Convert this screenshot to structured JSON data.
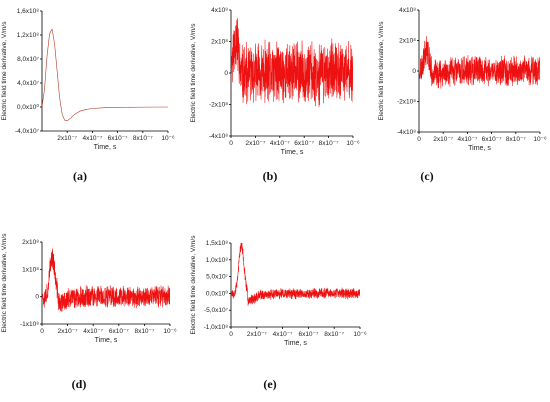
{
  "chart_data": [
    {
      "panel": "(a)",
      "type": "line",
      "xlabel": "Time, s",
      "ylabel": "Electric field time derivative, V/m/s",
      "xlim": [
        0,
        1e-06
      ],
      "ylim": [
        -40000000.0,
        160000000.0
      ],
      "xticks": [
        "2x10⁻⁷",
        "4x10⁻⁷",
        "6x10⁻⁷",
        "8x10⁻⁷",
        "10⁻⁶"
      ],
      "yticks": [
        "-4,0x10⁷",
        "0,0x10⁰",
        "4,0x10⁷",
        "8,0x10⁷",
        "1,2x10⁸",
        "1,6x10⁸"
      ],
      "series": [
        {
          "color": "#b23a1e",
          "x": [
            0,
            2e-08,
            4e-08,
            6e-08,
            8e-08,
            1e-07,
            1.2e-07,
            1.4e-07,
            1.6e-07,
            1.8e-07,
            2e-07,
            2.3e-07,
            2.6e-07,
            3e-07,
            3.5e-07,
            4e-07,
            5e-07,
            6e-07,
            8e-07,
            1e-06
          ],
          "values": [
            0,
            30000000.0,
            85000000.0,
            122000000.0,
            130000000.0,
            105000000.0,
            60000000.0,
            15000000.0,
            -12000000.0,
            -22000000.0,
            -23000000.0,
            -18000000.0,
            -12000000.0,
            -7000000.0,
            -4000000.0,
            -2500000.0,
            -1200000.0,
            -600000.0,
            -200000.0,
            0
          ]
        }
      ]
    },
    {
      "panel": "(b)",
      "type": "line",
      "xlabel": "Time, s",
      "ylabel": "Electric field time derivative, V/m/s",
      "xlim": [
        0,
        1e-06
      ],
      "ylim": [
        -400000000.0,
        400000000.0
      ],
      "xticks": [
        "0",
        "2x10⁻⁷",
        "4x10⁻⁷",
        "6x10⁻⁷",
        "8x10⁻⁷",
        "10⁻⁶"
      ],
      "yticks": [
        "-4x10⁸",
        "-2x10⁸",
        "0",
        "2x10⁸",
        "4x10⁸"
      ],
      "series": [
        {
          "color": "#ee1111",
          "signal": {
            "pulse_peak": 220000000.0,
            "pulse_time": 4e-08,
            "pulse_width": 3e-08,
            "noise_amplitude": 220000000.0,
            "seed": 11
          }
        }
      ]
    },
    {
      "panel": "(c)",
      "type": "line",
      "xlabel": "Time, s",
      "ylabel": "Electric field time derivative, V/m/s",
      "xlim": [
        0,
        1e-06
      ],
      "ylim": [
        -400000000.0,
        400000000.0
      ],
      "xticks": [
        "0",
        "2x10⁻⁷",
        "4x10⁻⁷",
        "6x10⁻⁷",
        "8x10⁻⁷",
        "10⁻⁶"
      ],
      "yticks": [
        "-4x10⁸",
        "-2x10⁸",
        "0",
        "2x10⁸",
        "4x10⁸"
      ],
      "series": [
        {
          "color": "#ee1111",
          "signal": {
            "pulse_peak": 150000000.0,
            "pulse_time": 6e-08,
            "pulse_width": 3e-08,
            "noise_amplitude": 110000000.0,
            "seed": 23
          }
        }
      ]
    },
    {
      "panel": "(d)",
      "type": "line",
      "xlabel": "Time, s",
      "ylabel": "Electric field time derivative, V/m/s",
      "xlim": [
        0,
        1e-06
      ],
      "ylim": [
        -100000000.0,
        200000000.0
      ],
      "xticks": [
        "0",
        "2x10⁻⁷",
        "4x10⁻⁷",
        "6x10⁻⁷",
        "8x10⁻⁷",
        "10⁻⁶"
      ],
      "yticks": [
        "-1x10⁸",
        "0",
        "1x10⁸",
        "2x10⁸"
      ],
      "series": [
        {
          "color": "#ee1111",
          "signal": {
            "pulse_peak": 145000000.0,
            "pulse_time": 8e-08,
            "pulse_width": 2.8e-08,
            "noise_amplitude": 45000000.0,
            "seed": 37
          }
        }
      ]
    },
    {
      "panel": "(e)",
      "type": "line",
      "xlabel": "Time, s",
      "ylabel": "Electric field time derivative, V/m/s",
      "xlim": [
        0,
        1e-06
      ],
      "ylim": [
        -100000000.0,
        150000000.0
      ],
      "xticks": [
        "0",
        "2x10⁻⁷",
        "4x10⁻⁷",
        "6x10⁻⁷",
        "8x10⁻⁷",
        "10⁻⁶"
      ],
      "yticks": [
        "-1,0x10⁸",
        "-5,0x10⁷",
        "0,0x10⁰",
        "5,0x10⁷",
        "1,0x10⁸",
        "1,5x10⁸"
      ],
      "series": [
        {
          "color": "#ee1111",
          "signal": {
            "pulse_peak": 142000000.0,
            "pulse_time": 8e-08,
            "pulse_width": 2.8e-08,
            "noise_amplitude": 18000000.0,
            "seed": 53
          }
        }
      ]
    }
  ]
}
